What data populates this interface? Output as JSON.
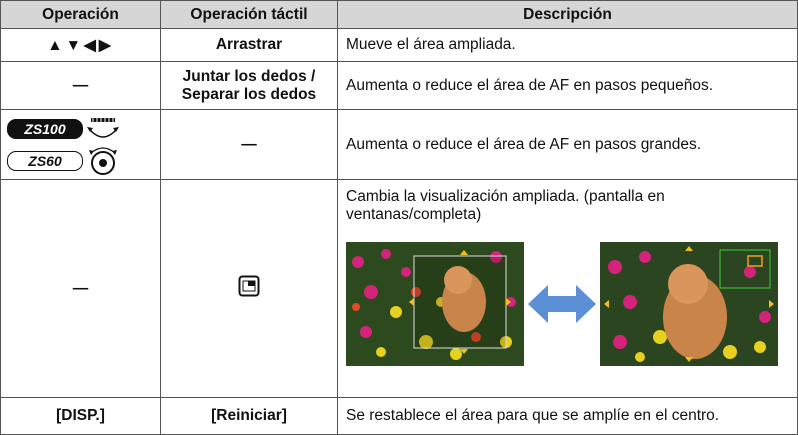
{
  "table": {
    "header": [
      "Operación",
      "Operación táctil",
      "Descripción"
    ],
    "rows": [
      {
        "operation": "▲▼◀▶",
        "touch": "Arrastrar",
        "description": "Mueve el área ampliada."
      },
      {
        "operation": "—",
        "touch": "Juntar los dedos / Separar los dedos",
        "description": "Aumenta o reduce el área de AF en pasos pequeños."
      },
      {
        "operation": [
          "ZS100",
          "ZS60"
        ],
        "touch": "—",
        "description": "Aumenta o reduce el área de AF en pasos grandes."
      },
      {
        "operation": "—",
        "description": "Cambia la visualización ampliada. (pantalla en ventanas/completa)"
      },
      {
        "operation": "[DISP.]",
        "touch": "[Reiniciar]",
        "description": "Se restablece el área para que se amplíe en el centro."
      }
    ]
  }
}
